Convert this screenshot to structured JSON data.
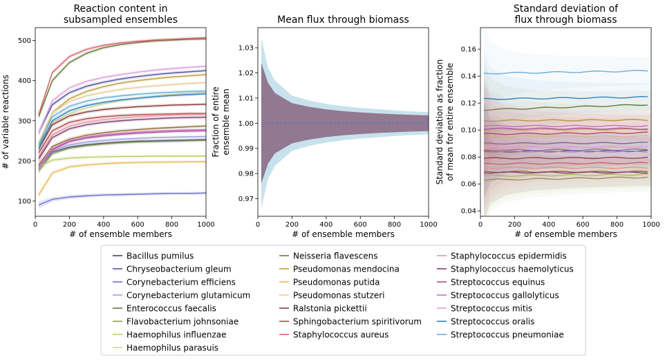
{
  "chart_data": [
    {
      "type": "line",
      "title": "Reaction content in\nsubsampled ensembles",
      "xlabel": "# of ensemble members",
      "ylabel": "# of variable reactions",
      "xlim": [
        0,
        1000
      ],
      "ylim": [
        62,
        532
      ],
      "xticks": [
        "0",
        "200",
        "400",
        "600",
        "800",
        "1000"
      ],
      "yticks": [
        "100",
        "200",
        "300",
        "400",
        "500"
      ],
      "x": [
        20,
        100,
        200,
        300,
        400,
        500,
        600,
        700,
        800,
        900,
        1000
      ],
      "series": [
        {
          "name": "Bacillus pumilus",
          "values": [
            180,
            222,
            234,
            240,
            244,
            247,
            249,
            250,
            251,
            252,
            253
          ]
        },
        {
          "name": "Chryseobacterium gleum",
          "values": [
            270,
            340,
            370,
            386,
            396,
            404,
            410,
            415,
            419,
            422,
            425
          ]
        },
        {
          "name": "Corynebacterium efficiens",
          "values": [
            90,
            104,
            110,
            113,
            115,
            116,
            117,
            118,
            119,
            119,
            120
          ]
        },
        {
          "name": "Corynebacterium glutamicum",
          "values": [
            180,
            225,
            240,
            247,
            251,
            254,
            256,
            258,
            259,
            260,
            261
          ]
        },
        {
          "name": "Enterococcus faecalis",
          "values": [
            310,
            400,
            445,
            468,
            482,
            490,
            495,
            499,
            501,
            503,
            504
          ]
        },
        {
          "name": "Flavobacterium johnsoniae",
          "values": [
            175,
            218,
            232,
            238,
            242,
            245,
            247,
            248,
            249,
            250,
            251
          ]
        },
        {
          "name": "Haemophilus influenzae",
          "values": [
            185,
            202,
            207,
            209,
            210,
            211,
            211,
            212,
            212,
            212,
            212
          ]
        },
        {
          "name": "Haemophilus parasuis",
          "values": [
            240,
            295,
            318,
            332,
            342,
            350,
            356,
            361,
            365,
            368,
            371
          ]
        },
        {
          "name": "Neisseria flavescens",
          "values": [
            190,
            236,
            254,
            264,
            270,
            275,
            278,
            281,
            283,
            285,
            287
          ]
        },
        {
          "name": "Pseudomonas mendocina",
          "values": [
            230,
            320,
            355,
            373,
            385,
            394,
            400,
            405,
            409,
            412,
            415
          ]
        },
        {
          "name": "Pseudomonas putida",
          "values": [
            115,
            170,
            185,
            190,
            193,
            195,
            196,
            197,
            197,
            198,
            198
          ]
        },
        {
          "name": "Pseudomonas stutzeri",
          "values": [
            245,
            320,
            348,
            362,
            371,
            378,
            383,
            387,
            390,
            393,
            395
          ]
        },
        {
          "name": "Ralstonia pickettii",
          "values": [
            230,
            290,
            312,
            322,
            328,
            332,
            335,
            337,
            339,
            340,
            341
          ]
        },
        {
          "name": "Sphingobacterium spiritivorum",
          "values": [
            220,
            275,
            296,
            305,
            310,
            313,
            315,
            316,
            317,
            318,
            318
          ]
        },
        {
          "name": "Staphylococcus aureus",
          "values": [
            315,
            420,
            460,
            478,
            488,
            494,
            498,
            501,
            503,
            505,
            507
          ]
        },
        {
          "name": "Staphylococcus epidermidis",
          "values": [
            210,
            265,
            287,
            297,
            303,
            307,
            310,
            312,
            314,
            315,
            316
          ]
        },
        {
          "name": "Staphylococcus haemolyticus",
          "values": [
            205,
            258,
            280,
            290,
            296,
            300,
            303,
            305,
            307,
            308,
            309
          ]
        },
        {
          "name": "Streptococcus equinus",
          "values": [
            185,
            228,
            248,
            257,
            262,
            266,
            269,
            271,
            273,
            274,
            275
          ]
        },
        {
          "name": "Streptococcus gallolyticus",
          "values": [
            185,
            230,
            250,
            259,
            265,
            269,
            272,
            274,
            276,
            277,
            278
          ]
        },
        {
          "name": "Streptococcus mitis",
          "values": [
            270,
            350,
            382,
            398,
            408,
            415,
            421,
            426,
            430,
            433,
            436
          ]
        },
        {
          "name": "Streptococcus oralis",
          "values": [
            230,
            300,
            325,
            338,
            346,
            352,
            356,
            360,
            363,
            365,
            367
          ]
        },
        {
          "name": "Streptococcus pneumoniae",
          "values": [
            240,
            310,
            336,
            349,
            357,
            362,
            366,
            369,
            371,
            373,
            374
          ]
        }
      ]
    },
    {
      "type": "area",
      "title": "Mean flux through biomass",
      "xlabel": "# of ensemble members",
      "ylabel": "Fraction of entire\nensemble mean",
      "xlim": [
        0,
        1000
      ],
      "ylim": [
        0.963,
        1.038
      ],
      "xticks": [
        "0",
        "200",
        "400",
        "600",
        "800",
        "1000"
      ],
      "yticks": [
        "0.97",
        "0.98",
        "0.99",
        "1.00",
        "1.01",
        "1.02",
        "1.03"
      ],
      "x": [
        20,
        60,
        100,
        200,
        300,
        400,
        500,
        600,
        700,
        800,
        900,
        1000
      ],
      "mean": [
        1.0,
        1.0,
        1.0,
        1.0,
        1.0,
        1.0,
        1.0,
        1.0,
        1.0,
        1.0,
        1.0,
        1.0
      ],
      "spread_inner": [
        0.024,
        0.016,
        0.012,
        0.008,
        0.0065,
        0.0055,
        0.0048,
        0.0043,
        0.0039,
        0.0036,
        0.0033,
        0.0031
      ],
      "spread_outer": [
        0.034,
        0.022,
        0.017,
        0.011,
        0.009,
        0.0077,
        0.0068,
        0.0061,
        0.0056,
        0.0051,
        0.0047,
        0.0044
      ]
    },
    {
      "type": "line",
      "title": "Standard deviation of\nflux through biomass",
      "xlabel": "# of ensemble members",
      "ylabel": "Standard deviation as fraction\nof mean for entire ensemble",
      "xlim": [
        0,
        1000
      ],
      "ylim": [
        0.036,
        0.176
      ],
      "xticks": [
        "0",
        "200",
        "400",
        "600",
        "800",
        "1000"
      ],
      "yticks": [
        "0.04",
        "0.06",
        "0.08",
        "0.10",
        "0.12",
        "0.14",
        "0.16"
      ],
      "x": [
        20,
        1000
      ],
      "series": [
        {
          "name": "Bacillus pumilus",
          "values": [
            0.084,
            0.0845
          ]
        },
        {
          "name": "Chryseobacterium gleum",
          "values": [
            0.09,
            0.0905
          ]
        },
        {
          "name": "Corynebacterium efficiens",
          "values": [
            0.085,
            0.0855
          ]
        },
        {
          "name": "Corynebacterium glutamicum",
          "values": [
            0.084,
            0.084
          ]
        },
        {
          "name": "Enterococcus faecalis",
          "values": [
            0.115,
            0.119
          ]
        },
        {
          "name": "Flavobacterium johnsoniae",
          "values": [
            0.063,
            0.065
          ]
        },
        {
          "name": "Haemophilus influenzae",
          "values": [
            0.066,
            0.067
          ]
        },
        {
          "name": "Haemophilus parasuis",
          "values": [
            0.095,
            0.0955
          ]
        },
        {
          "name": "Neisseria flavescens",
          "values": [
            0.069,
            0.069
          ]
        },
        {
          "name": "Pseudomonas mendocina",
          "values": [
            0.107,
            0.1075
          ]
        },
        {
          "name": "Pseudomonas putida",
          "values": [
            0.1,
            0.1005
          ]
        },
        {
          "name": "Pseudomonas stutzeri",
          "values": [
            0.087,
            0.087
          ]
        },
        {
          "name": "Ralstonia pickettii",
          "values": [
            0.079,
            0.0795
          ]
        },
        {
          "name": "Sphingobacterium spiritivorum",
          "values": [
            0.097,
            0.098
          ]
        },
        {
          "name": "Staphylococcus aureus",
          "values": [
            0.075,
            0.0755
          ]
        },
        {
          "name": "Staphylococcus epidermidis",
          "values": [
            0.072,
            0.072
          ]
        },
        {
          "name": "Staphylococcus haemolyticus",
          "values": [
            0.0685,
            0.0685
          ]
        },
        {
          "name": "Streptococcus equinus",
          "values": [
            0.101,
            0.101
          ]
        },
        {
          "name": "Streptococcus gallolyticus",
          "values": [
            0.103,
            0.103
          ]
        },
        {
          "name": "Streptococcus mitis",
          "values": [
            0.0875,
            0.0875
          ]
        },
        {
          "name": "Streptococcus oralis",
          "values": [
            0.123,
            0.1245
          ]
        },
        {
          "name": "Streptococcus pneumoniae",
          "values": [
            0.142,
            0.144
          ]
        }
      ]
    }
  ],
  "legend": {
    "placement": "bottom-center",
    "columns": 3,
    "entries": [
      {
        "label": "Bacillus pumilus",
        "color": "#393b79"
      },
      {
        "label": "Chryseobacterium gleum",
        "color": "#5254a3"
      },
      {
        "label": "Corynebacterium efficiens",
        "color": "#6b6ecf"
      },
      {
        "label": "Corynebacterium glutamicum",
        "color": "#9c9ede"
      },
      {
        "label": "Enterococcus faecalis",
        "color": "#637939"
      },
      {
        "label": "Flavobacterium johnsoniae",
        "color": "#8ca252"
      },
      {
        "label": "Haemophilus influenzae",
        "color": "#b5cf6b"
      },
      {
        "label": "Haemophilus parasuis",
        "color": "#cedb9c"
      },
      {
        "label": "Neisseria flavescens",
        "color": "#8c6d31"
      },
      {
        "label": "Pseudomonas mendocina",
        "color": "#bd9e39"
      },
      {
        "label": "Pseudomonas putida",
        "color": "#e7ba52"
      },
      {
        "label": "Pseudomonas stutzeri",
        "color": "#e7cb94"
      },
      {
        "label": "Ralstonia pickettii",
        "color": "#843c39"
      },
      {
        "label": "Sphingobacterium spiritivorum",
        "color": "#ad494a"
      },
      {
        "label": "Staphylococcus aureus",
        "color": "#d6616b"
      },
      {
        "label": "Staphylococcus epidermidis",
        "color": "#e7969c"
      },
      {
        "label": "Staphylococcus haemolyticus",
        "color": "#7b4173"
      },
      {
        "label": "Streptococcus equinus",
        "color": "#a55194"
      },
      {
        "label": "Streptococcus gallolyticus",
        "color": "#ce6dbd"
      },
      {
        "label": "Streptococcus mitis",
        "color": "#de9ed6"
      },
      {
        "label": "Streptococcus oralis",
        "color": "#3182bd"
      },
      {
        "label": "Streptococcus pneumoniae",
        "color": "#6baed6"
      }
    ]
  },
  "middle_band_colors": {
    "outer": "#b9dbe8",
    "inner": "#8c6d86",
    "mean_a": "#3182bd",
    "mean_b": "#ce6dbd"
  }
}
